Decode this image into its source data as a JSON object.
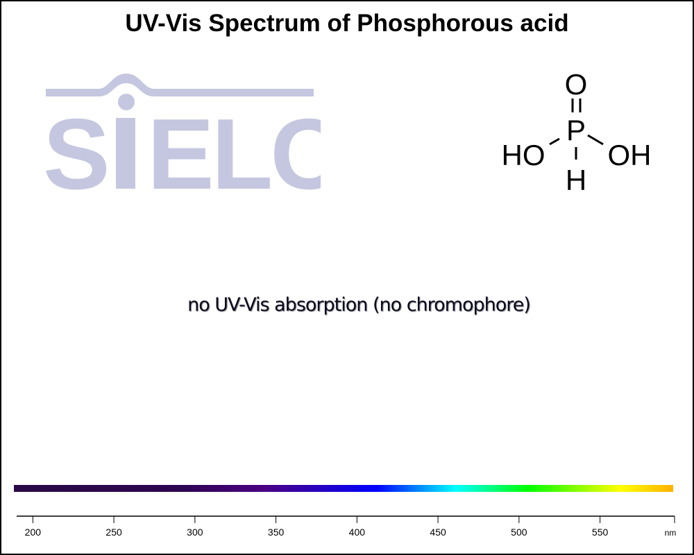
{
  "chart_data": {
    "type": "line",
    "title": "UV-Vis Spectrum of Phosphorous acid",
    "annotation": "no UV-Vis absorption (no chromophore)",
    "xlabel": "nm",
    "xlim": [
      190,
      596
    ],
    "xticks": [
      200,
      250,
      300,
      350,
      400,
      450,
      500,
      550
    ],
    "xtick_labels": [
      "200",
      "250",
      "300",
      "350",
      "400",
      "450",
      "500",
      "550"
    ],
    "series": [],
    "spectrum_bar_colors": [
      "#2a0a45",
      "#2d0650",
      "#4b0082",
      "#0000ff",
      "#00ffff",
      "#00ff00",
      "#ffff00",
      "#ffb000"
    ],
    "watermark": "SIELC",
    "structure_labels": {
      "top": "O",
      "center": "P",
      "left": "HO",
      "right": "OH",
      "bottom": "H"
    }
  }
}
